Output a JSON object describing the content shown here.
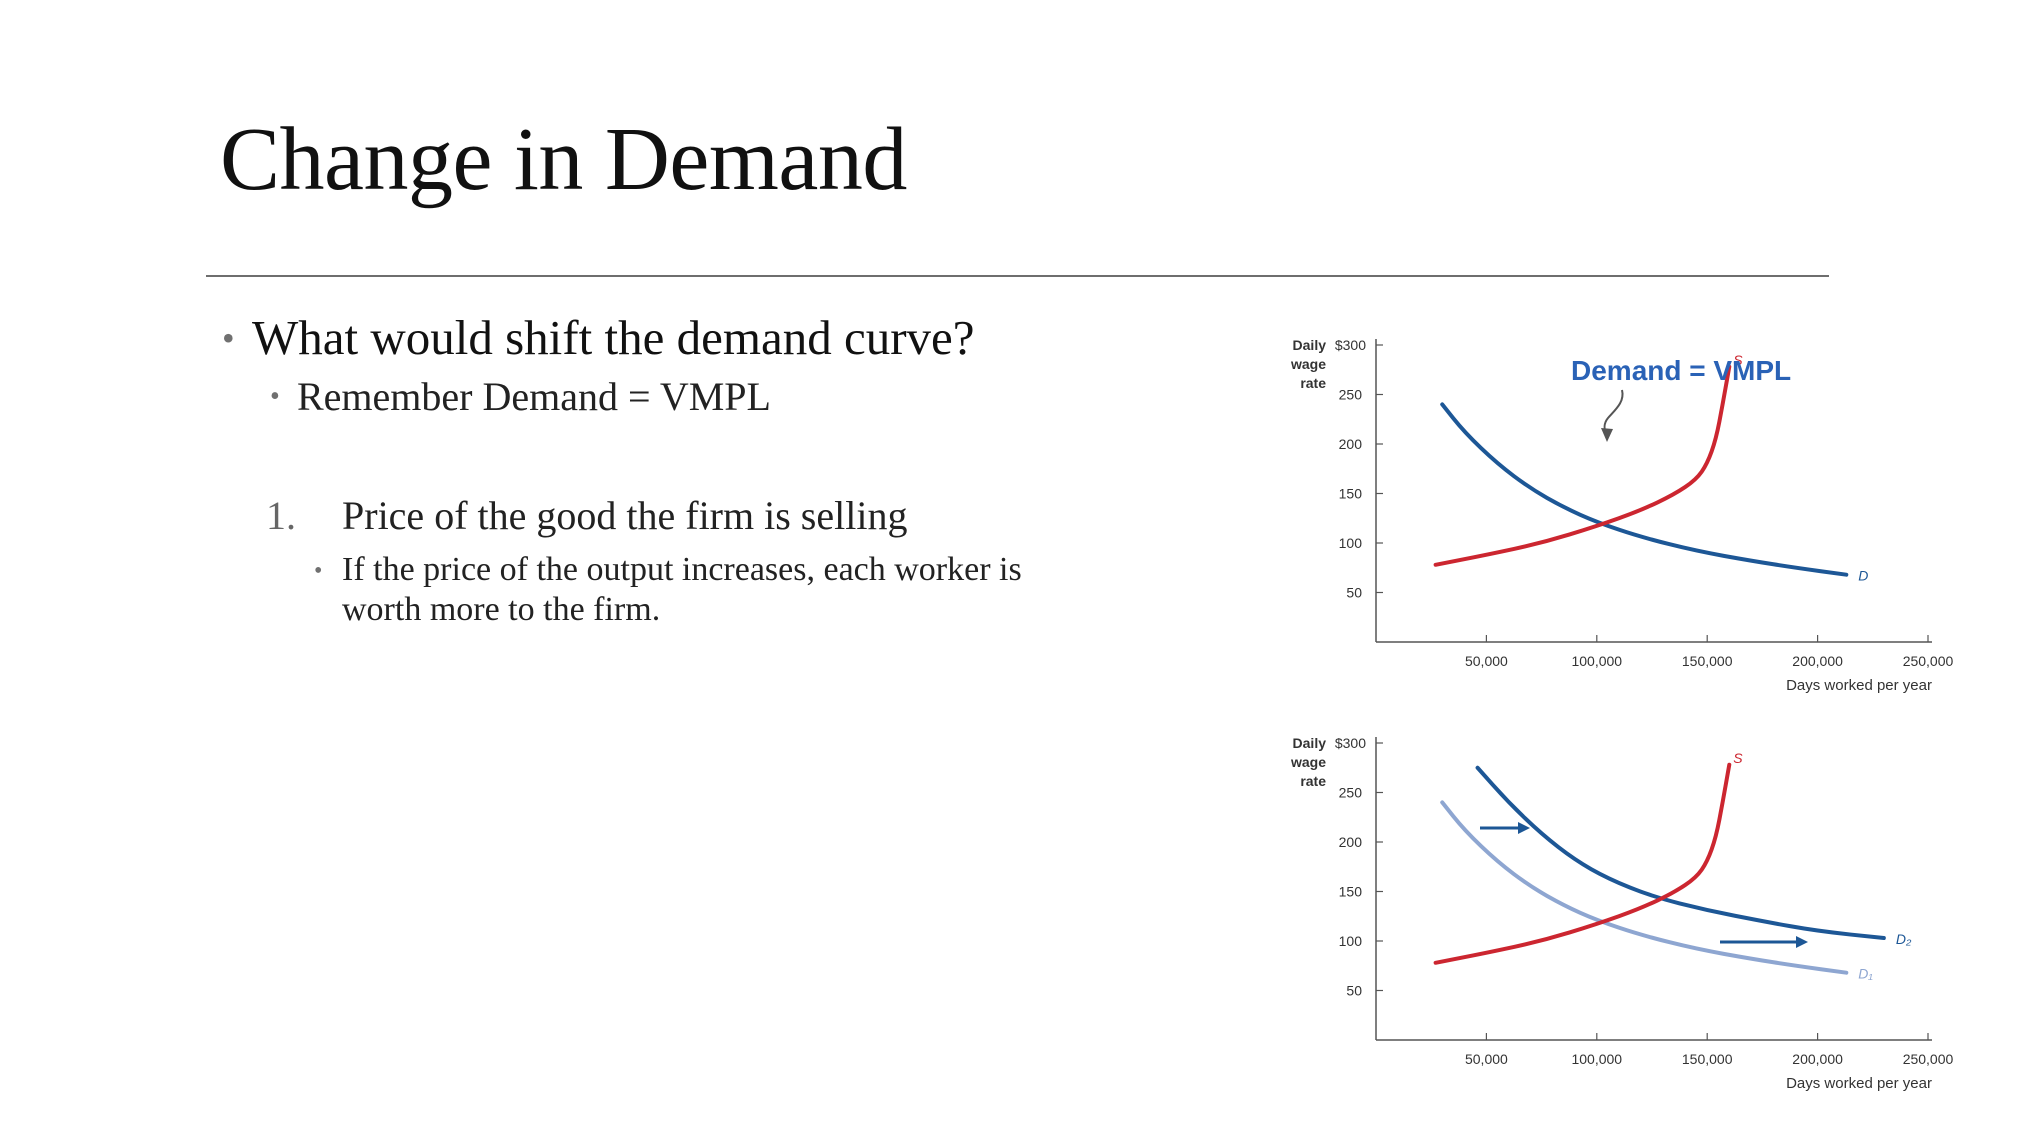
{
  "slide": {
    "title": "Change in Demand",
    "bullets": {
      "main": "What would shift the demand curve?",
      "sub": "Remember Demand = VMPL",
      "numbered_index": "1.",
      "numbered_item": "Price of the good the firm is selling",
      "detail": "If the price of the output increases, each worker is worth more to the firm."
    }
  },
  "colors": {
    "demand": "#1d5796",
    "demand_old": "#8ea6d1",
    "supply": "#cc2630",
    "annotation": "#2a62b6",
    "axis": "#555555"
  },
  "chart_data": [
    {
      "type": "line",
      "title": "",
      "ylabel": "Daily wage rate",
      "xlabel": "Days worked per year",
      "ylim": [
        0,
        300
      ],
      "xlim": [
        0,
        250000
      ],
      "yticks": [
        50,
        100,
        150,
        200,
        250
      ],
      "ytick_labels": [
        "50",
        "100",
        "150",
        "200",
        "250"
      ],
      "ytop_label": "$300",
      "xticks": [
        50000,
        100000,
        150000,
        200000,
        250000
      ],
      "xtick_labels": [
        "50,000",
        "100,000",
        "150,000",
        "200,000",
        "250,000"
      ],
      "annotation": "Demand = VMPL",
      "series": [
        {
          "name": "D",
          "color_key": "demand",
          "points": [
            [
              30000,
              240
            ],
            [
              40000,
              212
            ],
            [
              55000,
              180
            ],
            [
              70000,
              155
            ],
            [
              85000,
              136
            ],
            [
              100000,
              121
            ],
            [
              120000,
              106
            ],
            [
              145000,
              92
            ],
            [
              170000,
              82
            ],
            [
              190000,
              75
            ],
            [
              213000,
              68
            ]
          ]
        },
        {
          "name": "S",
          "color_key": "supply",
          "points": [
            [
              27000,
              78
            ],
            [
              50000,
              88
            ],
            [
              75000,
              100
            ],
            [
              100000,
              117
            ],
            [
              120000,
              133
            ],
            [
              135000,
              149
            ],
            [
              145000,
              164
            ],
            [
              150000,
              180
            ],
            [
              154000,
              205
            ],
            [
              157000,
              240
            ],
            [
              160000,
              278
            ]
          ]
        }
      ]
    },
    {
      "type": "line",
      "title": "",
      "ylabel": "Daily wage rate",
      "xlabel": "Days worked per year",
      "ylim": [
        0,
        300
      ],
      "xlim": [
        0,
        250000
      ],
      "yticks": [
        50,
        100,
        150,
        200,
        250
      ],
      "ytick_labels": [
        "50",
        "100",
        "150",
        "200",
        "250"
      ],
      "ytop_label": "$300",
      "xticks": [
        50000,
        100000,
        150000,
        200000,
        250000
      ],
      "xtick_labels": [
        "50,000",
        "100,000",
        "150,000",
        "200,000",
        "250,000"
      ],
      "series": [
        {
          "name": "D₁",
          "color_key": "demand_old",
          "points": [
            [
              30000,
              240
            ],
            [
              40000,
              212
            ],
            [
              55000,
              180
            ],
            [
              70000,
              155
            ],
            [
              85000,
              136
            ],
            [
              100000,
              121
            ],
            [
              120000,
              106
            ],
            [
              145000,
              92
            ],
            [
              170000,
              82
            ],
            [
              190000,
              75
            ],
            [
              213000,
              68
            ]
          ]
        },
        {
          "name": "D₂",
          "color_key": "demand",
          "points": [
            [
              46000,
              275
            ],
            [
              60000,
              240
            ],
            [
              75000,
              208
            ],
            [
              90000,
              182
            ],
            [
              105000,
              163
            ],
            [
              125000,
              145
            ],
            [
              150000,
              131
            ],
            [
              175000,
              120
            ],
            [
              200000,
              110
            ],
            [
              230000,
              103
            ]
          ]
        },
        {
          "name": "S",
          "color_key": "supply",
          "points": [
            [
              27000,
              78
            ],
            [
              50000,
              88
            ],
            [
              75000,
              100
            ],
            [
              100000,
              117
            ],
            [
              120000,
              133
            ],
            [
              135000,
              149
            ],
            [
              145000,
              164
            ],
            [
              150000,
              180
            ],
            [
              154000,
              205
            ],
            [
              157000,
              240
            ],
            [
              160000,
              278
            ]
          ]
        }
      ]
    }
  ]
}
